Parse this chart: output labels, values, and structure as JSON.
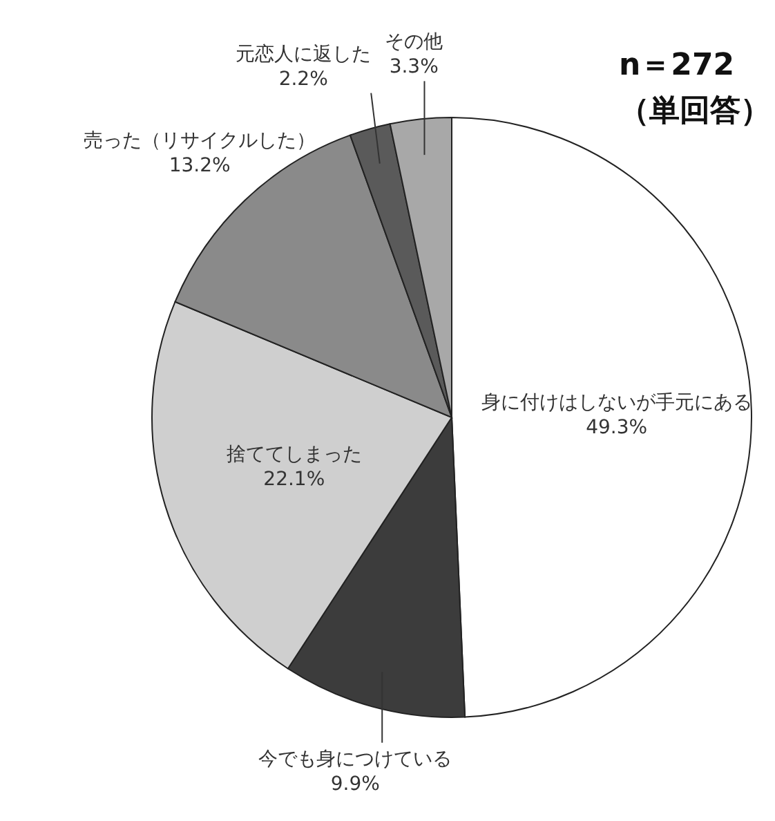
{
  "chart_data": {
    "type": "pie",
    "categories": [
      "身に付けはしないが手元にある",
      "今でも身につけている",
      "捨ててしまった",
      "売った（リサイクルした）",
      "元恋人に返した",
      "その他"
    ],
    "values": [
      49.3,
      9.9,
      22.1,
      13.2,
      2.2,
      3.3
    ],
    "value_labels": [
      "49.3%",
      "9.9%",
      "22.1%",
      "13.2%",
      "2.2%",
      "3.3%"
    ],
    "colors": [
      "#ffffff",
      "#3c3c3c",
      "#cfcfcf",
      "#8a8a8a",
      "#5a5a5a",
      "#a8a8a8"
    ],
    "annotations": [
      "n＝272",
      "（単回答）"
    ]
  }
}
